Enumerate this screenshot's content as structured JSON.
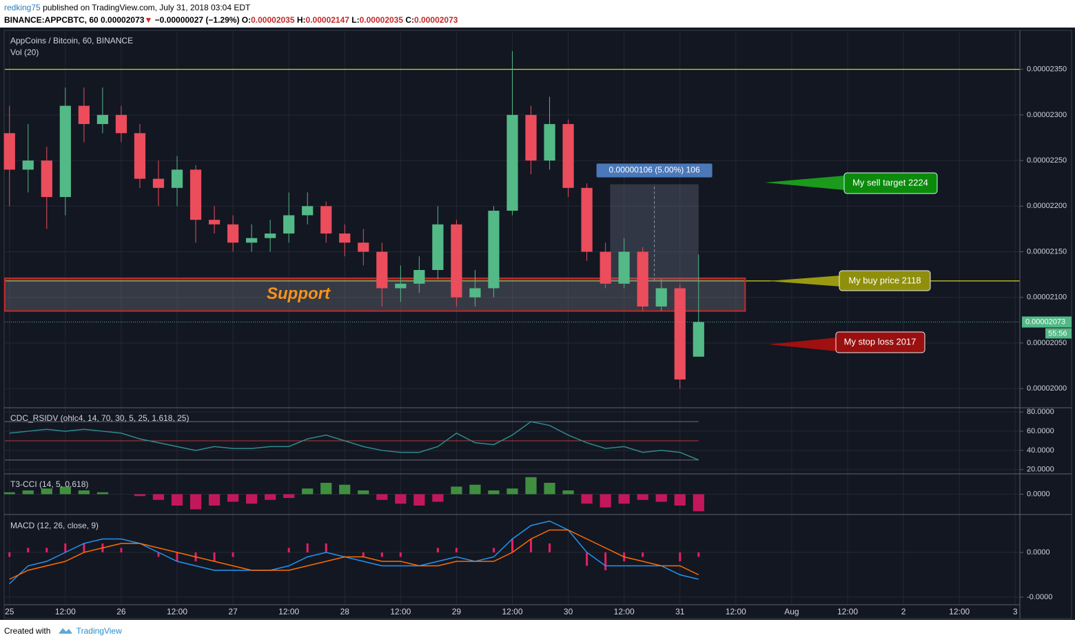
{
  "header": {
    "author": "redking75",
    "published": "published on TradingView.com, July 31, 2018 03:04 EDT",
    "symbol": "BINANCE:APPCBTC, 60",
    "price": "0.00002073",
    "arrow": "▼",
    "change": "−0.00000027 (−1.29%)",
    "ohlc": [
      {
        "label": "O:",
        "value": "0.00002035"
      },
      {
        "label": "H:",
        "value": "0.00002147"
      },
      {
        "label": "L:",
        "value": "0.00002035"
      },
      {
        "label": "C:",
        "value": "0.00002073"
      }
    ]
  },
  "footer": {
    "created": "Created with",
    "brand": "TradingView"
  },
  "annotations": {
    "sell": "My sell target 2224",
    "buy": "My buy price 2118",
    "stop": "My stop loss 2017"
  },
  "chart_data": [
    {
      "type": "candlestick",
      "title": "AppCoins / Bitcoin, 60, BINANCE",
      "subtitle": "Vol (20)",
      "x": [
        0,
        4,
        8,
        12,
        16,
        20,
        24,
        28,
        32,
        36,
        40,
        44,
        48,
        52,
        56,
        60,
        64,
        68,
        72,
        76,
        80,
        84,
        88,
        92,
        96,
        100,
        104,
        108,
        112,
        116,
        120,
        124,
        128,
        132,
        136,
        140,
        144,
        148
      ],
      "open": [
        2.28e-05,
        2.24e-05,
        2.25e-05,
        2.21e-05,
        2.31e-05,
        2.29e-05,
        2.3e-05,
        2.28e-05,
        2.23e-05,
        2.22e-05,
        2.24e-05,
        2.185e-05,
        2.18e-05,
        2.16e-05,
        2.165e-05,
        2.17e-05,
        2.19e-05,
        2.2e-05,
        2.17e-05,
        2.16e-05,
        2.15e-05,
        2.11e-05,
        2.115e-05,
        2.13e-05,
        2.18e-05,
        2.1e-05,
        2.11e-05,
        2.195e-05,
        2.3e-05,
        2.25e-05,
        2.29e-05,
        2.22e-05,
        2.15e-05,
        2.115e-05,
        2.15e-05,
        2.09e-05,
        2.11e-05,
        2.035e-05
      ],
      "high": [
        2.31e-05,
        2.29e-05,
        2.265e-05,
        2.33e-05,
        2.33e-05,
        2.33e-05,
        2.31e-05,
        2.29e-05,
        2.25e-05,
        2.255e-05,
        2.245e-05,
        2.2e-05,
        2.19e-05,
        2.18e-05,
        2.185e-05,
        2.215e-05,
        2.215e-05,
        2.205e-05,
        2.18e-05,
        2.175e-05,
        2.16e-05,
        2.135e-05,
        2.145e-05,
        2.2e-05,
        2.185e-05,
        2.13e-05,
        2.2e-05,
        2.37e-05,
        2.31e-05,
        2.32e-05,
        2.295e-05,
        2.225e-05,
        2.16e-05,
        2.165e-05,
        2.155e-05,
        2.12e-05,
        2.115e-05,
        2.147e-05
      ],
      "low": [
        2.2e-05,
        2.215e-05,
        2.175e-05,
        2.19e-05,
        2.27e-05,
        2.28e-05,
        2.27e-05,
        2.22e-05,
        2.2e-05,
        2.2e-05,
        2.16e-05,
        2.17e-05,
        2.15e-05,
        2.15e-05,
        2.15e-05,
        2.16e-05,
        2.18e-05,
        2.16e-05,
        2.145e-05,
        2.135e-05,
        2.09e-05,
        2.095e-05,
        2.105e-05,
        2.12e-05,
        2.09e-05,
        2.09e-05,
        2.1e-05,
        2.19e-05,
        2.235e-05,
        2.24e-05,
        2.21e-05,
        2.14e-05,
        2.11e-05,
        2.11e-05,
        2.085e-05,
        2.085e-05,
        2e-05,
        2.035e-05
      ],
      "close": [
        2.24e-05,
        2.25e-05,
        2.21e-05,
        2.31e-05,
        2.29e-05,
        2.3e-05,
        2.28e-05,
        2.23e-05,
        2.22e-05,
        2.24e-05,
        2.185e-05,
        2.18e-05,
        2.16e-05,
        2.165e-05,
        2.17e-05,
        2.19e-05,
        2.2e-05,
        2.17e-05,
        2.16e-05,
        2.15e-05,
        2.11e-05,
        2.115e-05,
        2.13e-05,
        2.18e-05,
        2.1e-05,
        2.11e-05,
        2.195e-05,
        2.3e-05,
        2.25e-05,
        2.29e-05,
        2.22e-05,
        2.15e-05,
        2.115e-05,
        2.15e-05,
        2.09e-05,
        2.11e-05,
        2.01e-05,
        2.073e-05
      ],
      "up_color": "#53b987",
      "down_color": "#eb4d5c",
      "xlim": [
        -1,
        217
      ],
      "xticks": [
        {
          "value": 0,
          "label": "25"
        },
        {
          "value": 12,
          "label": "12:00"
        },
        {
          "value": 24,
          "label": "26"
        },
        {
          "value": 36,
          "label": "12:00"
        },
        {
          "value": 48,
          "label": "27"
        },
        {
          "value": 60,
          "label": "12:00"
        },
        {
          "value": 72,
          "label": "28"
        },
        {
          "value": 84,
          "label": "12:00"
        },
        {
          "value": 96,
          "label": "29"
        },
        {
          "value": 108,
          "label": "12:00"
        },
        {
          "value": 120,
          "label": "30"
        },
        {
          "value": 132,
          "label": "12:00"
        },
        {
          "value": 144,
          "label": "31"
        },
        {
          "value": 156,
          "label": "12:00"
        },
        {
          "value": 168,
          "label": "Aug"
        },
        {
          "value": 180,
          "label": "12:00"
        },
        {
          "value": 192,
          "label": "2"
        },
        {
          "value": 204,
          "label": "12:00"
        },
        {
          "value": 216,
          "label": "3"
        }
      ],
      "ylim": [
        1.979e-05,
        2.392e-05
      ],
      "yticks": [
        {
          "value": 2.35e-05,
          "label": "0.00002350"
        },
        {
          "value": 2.3e-05,
          "label": "0.00002300"
        },
        {
          "value": 2.25e-05,
          "label": "0.00002250"
        },
        {
          "value": 2.2e-05,
          "label": "0.00002200"
        },
        {
          "value": 2.15e-05,
          "label": "0.00002150"
        },
        {
          "value": 2.1e-05,
          "label": "0.00002100"
        },
        {
          "value": 2.05e-05,
          "label": "0.00002050"
        },
        {
          "value": 2e-05,
          "label": "0.00002000"
        }
      ],
      "grid": true,
      "levels": [
        {
          "value": 2.35e-05,
          "color": "#d8d02a"
        },
        {
          "value": 2.118e-05,
          "color": "#d8d02a"
        }
      ],
      "support_zone": {
        "label": "Support",
        "x": [
          -1,
          158
        ],
        "y": [
          2.085e-05,
          2.121e-05
        ]
      },
      "measure": {
        "label": "0.00000106 (5.00%) 106",
        "x": [
          129,
          148
        ],
        "y": [
          2.118e-05,
          2.224e-05
        ]
      },
      "current_price": {
        "value": 2.073e-05,
        "label": "0.00002073",
        "countdown": "55:56"
      }
    },
    {
      "type": "line",
      "title": "CDC_RSIDV (ohlc4, 14, 70, 30, 5, 25, 1.618, 25)",
      "series": [
        {
          "color": "#2e8c8c",
          "values": [
            58,
            60,
            62,
            60,
            62,
            60,
            58,
            52,
            48,
            44,
            40,
            44,
            42,
            42,
            44,
            44,
            52,
            56,
            50,
            44,
            40,
            38,
            38,
            44,
            58,
            48,
            46,
            56,
            70,
            66,
            56,
            48,
            42,
            44,
            38,
            40,
            38,
            30
          ]
        }
      ],
      "ylim": [
        17,
        83
      ],
      "yticks": [
        {
          "value": 80,
          "label": "80.0000"
        },
        {
          "value": 60,
          "label": "60.0000"
        },
        {
          "value": 40,
          "label": "40.0000"
        },
        {
          "value": 20,
          "label": "20.0000"
        }
      ],
      "levels": [
        {
          "value": 70,
          "color": "#6b6f78"
        },
        {
          "value": 50,
          "color": "#b03a3a"
        },
        {
          "value": 30,
          "color": "#6b6f78"
        }
      ]
    },
    {
      "type": "bar",
      "title": "T3-CCI (14, 5, 0.618)",
      "values": [
        0.1,
        0.2,
        0.3,
        0.4,
        0.2,
        0.1,
        0,
        -0.1,
        -0.3,
        -0.6,
        -0.8,
        -0.6,
        -0.4,
        -0.5,
        -0.3,
        -0.2,
        0.3,
        0.6,
        0.5,
        0.2,
        -0.3,
        -0.5,
        -0.6,
        -0.4,
        0.4,
        0.5,
        0.2,
        0.3,
        0.9,
        0.6,
        0.2,
        -0.5,
        -0.7,
        -0.5,
        -0.3,
        -0.4,
        -0.6,
        -0.9
      ],
      "up_color": "#3f8f3f",
      "down_color": "#c2185b",
      "ylim": [
        -1,
        1
      ],
      "yticks": [
        {
          "value": 0,
          "label": "0.0000"
        }
      ]
    },
    {
      "type": "line",
      "title": "MACD (12, 26, close, 9)",
      "series": [
        {
          "kind": "histogram",
          "color": "#e91e63",
          "values": [
            -1e-08,
            1e-08,
            1e-08,
            2e-08,
            2e-08,
            2e-08,
            1e-08,
            0,
            -1e-08,
            -2e-08,
            -2e-08,
            -2e-08,
            -1e-08,
            0,
            0,
            1e-08,
            2e-08,
            2e-08,
            0,
            -1e-08,
            -1e-08,
            -1e-08,
            0,
            1e-08,
            1e-08,
            0,
            1e-08,
            3e-08,
            3e-08,
            2e-08,
            0,
            -3e-08,
            -4e-08,
            -2e-08,
            -1e-08,
            0,
            -2e-08,
            -1e-08
          ]
        },
        {
          "color": "#2196f3",
          "values": [
            -7e-08,
            -3e-08,
            -2e-08,
            0,
            2e-08,
            3e-08,
            3e-08,
            2e-08,
            0,
            -2e-08,
            -3e-08,
            -4e-08,
            -4e-08,
            -4e-08,
            -4e-08,
            -3e-08,
            -1e-08,
            0,
            -1e-08,
            -2e-08,
            -3e-08,
            -3e-08,
            -3e-08,
            -2e-08,
            -1e-08,
            -2e-08,
            -1e-08,
            3e-08,
            6e-08,
            7e-08,
            5e-08,
            0,
            -3e-08,
            -3e-08,
            -3e-08,
            -3e-08,
            -5e-08,
            -6e-08
          ]
        },
        {
          "color": "#ff6d00",
          "values": [
            -6e-08,
            -4e-08,
            -3e-08,
            -2e-08,
            0,
            1e-08,
            2e-08,
            2e-08,
            1e-08,
            0,
            -1e-08,
            -2e-08,
            -3e-08,
            -4e-08,
            -4e-08,
            -4e-08,
            -3e-08,
            -2e-08,
            -1e-08,
            -1e-08,
            -2e-08,
            -2e-08,
            -3e-08,
            -3e-08,
            -2e-08,
            -2e-08,
            -2e-08,
            0,
            3e-08,
            5e-08,
            5e-08,
            3e-08,
            1e-08,
            -1e-08,
            -2e-08,
            -3e-08,
            -3e-08,
            -5e-08
          ]
        }
      ],
      "ylim": [
        -1.2e-07,
        8e-08
      ],
      "yticks": [
        {
          "value": 0,
          "label": "0.0000"
        },
        {
          "value": -1e-07,
          "label": "-0.0000"
        }
      ]
    }
  ]
}
